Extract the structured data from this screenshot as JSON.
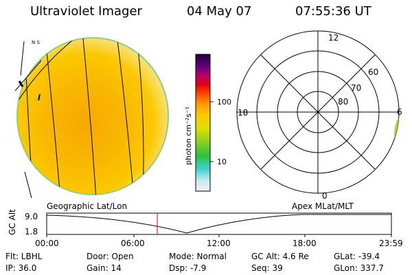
{
  "header": {
    "instrument": "Ultraviolet Imager",
    "date": "04 May 07",
    "time": "07:55:36 UT"
  },
  "globe": {
    "corner_marks": "N S"
  },
  "colorbar": {
    "unit_label": "photon cm⁻²s⁻¹",
    "ticks": [
      {
        "label": "100",
        "value": 100
      },
      {
        "label": "10",
        "value": 10
      }
    ],
    "scale": "log"
  },
  "polar_plot": {
    "mlt_labels": [
      {
        "label": "12",
        "position": "top"
      },
      {
        "label": "18",
        "position": "left"
      },
      {
        "label": "6",
        "position": "right"
      },
      {
        "label": "0",
        "position": "bottom"
      }
    ],
    "mlat_labels": [
      "60",
      "70",
      "80"
    ]
  },
  "coord_labels": {
    "left": "Geographic Lat/Lon",
    "right": "Apex MLat/MLT"
  },
  "alt_plot": {
    "ylabel": "GC Alt",
    "yticks": [
      "9.0",
      "1.8"
    ],
    "xticks": [
      "00:00",
      "06:00",
      "12:00",
      "18:00",
      "23:59"
    ],
    "marker_time": "07:55",
    "marker_color": "#e00000"
  },
  "info": {
    "flt": "Flt: LBHL",
    "ip": "IP: 36.0",
    "door": "Door: Open",
    "gain": "Gain: 14",
    "mode": "Mode: Normal",
    "dsp": "Dsp:    -7.9",
    "gcalt": "GC Alt: 4.6 Re",
    "seq": "Seq: 39",
    "glat": "GLat: -39.4",
    "glon": "GLon: 337.7"
  }
}
